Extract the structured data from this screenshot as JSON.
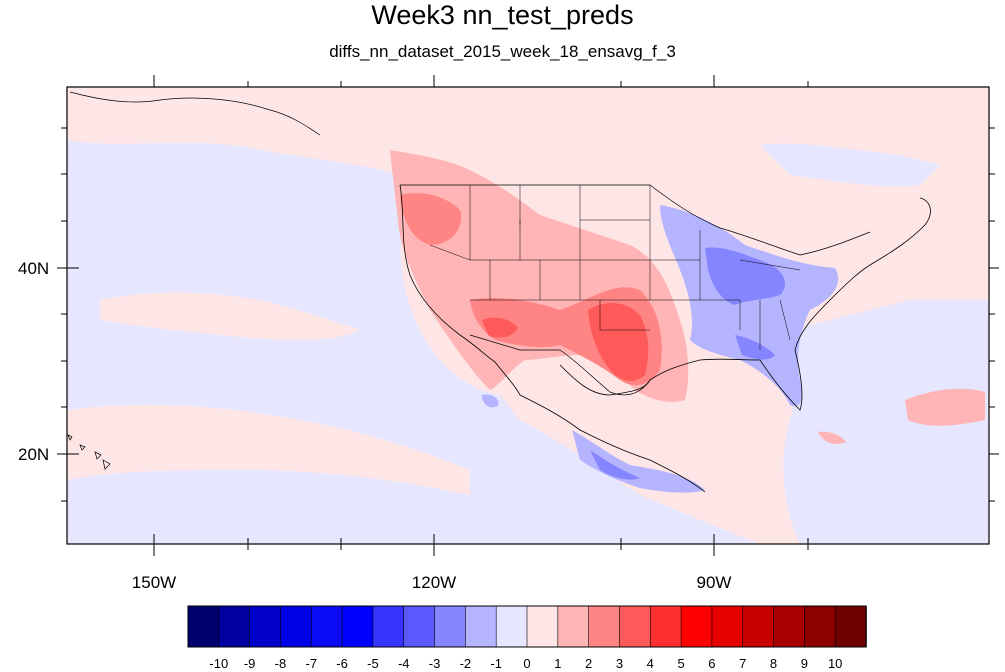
{
  "title": "Week3 nn_test_preds",
  "subtitle": "diffs_nn_dataset_2015_week_18_ensavg_f_3",
  "lat_labels": [
    "40N",
    "20N"
  ],
  "lon_labels": [
    "150W",
    "120W",
    "90W"
  ],
  "colorbar": {
    "labels": [
      "-10",
      "-9",
      "-8",
      "-7",
      "-6",
      "-5",
      "-4",
      "-3",
      "-2",
      "-1",
      "0",
      "1",
      "2",
      "3",
      "4",
      "5",
      "6",
      "7",
      "8",
      "9",
      "10"
    ],
    "colors": [
      "#00006f",
      "#0000a0",
      "#0000c8",
      "#0000e6",
      "#0a0af5",
      "#0000ff",
      "#3535ff",
      "#5a5aff",
      "#8585ff",
      "#b5b5ff",
      "#e6e6ff",
      "#ffe6e6",
      "#ffb5b5",
      "#ff8585",
      "#ff5a5a",
      "#ff3030",
      "#ff0000",
      "#e60000",
      "#c80000",
      "#a80000",
      "#8c0000",
      "#700000"
    ]
  },
  "colors": {
    "neg1": "#e6e6ff",
    "pos1": "#ffe6e6",
    "pos2": "#ffb5b5",
    "pos3": "#ff8585",
    "pos4": "#ff5a5a",
    "neg2": "#b5b5ff",
    "neg3": "#8585ff"
  }
}
